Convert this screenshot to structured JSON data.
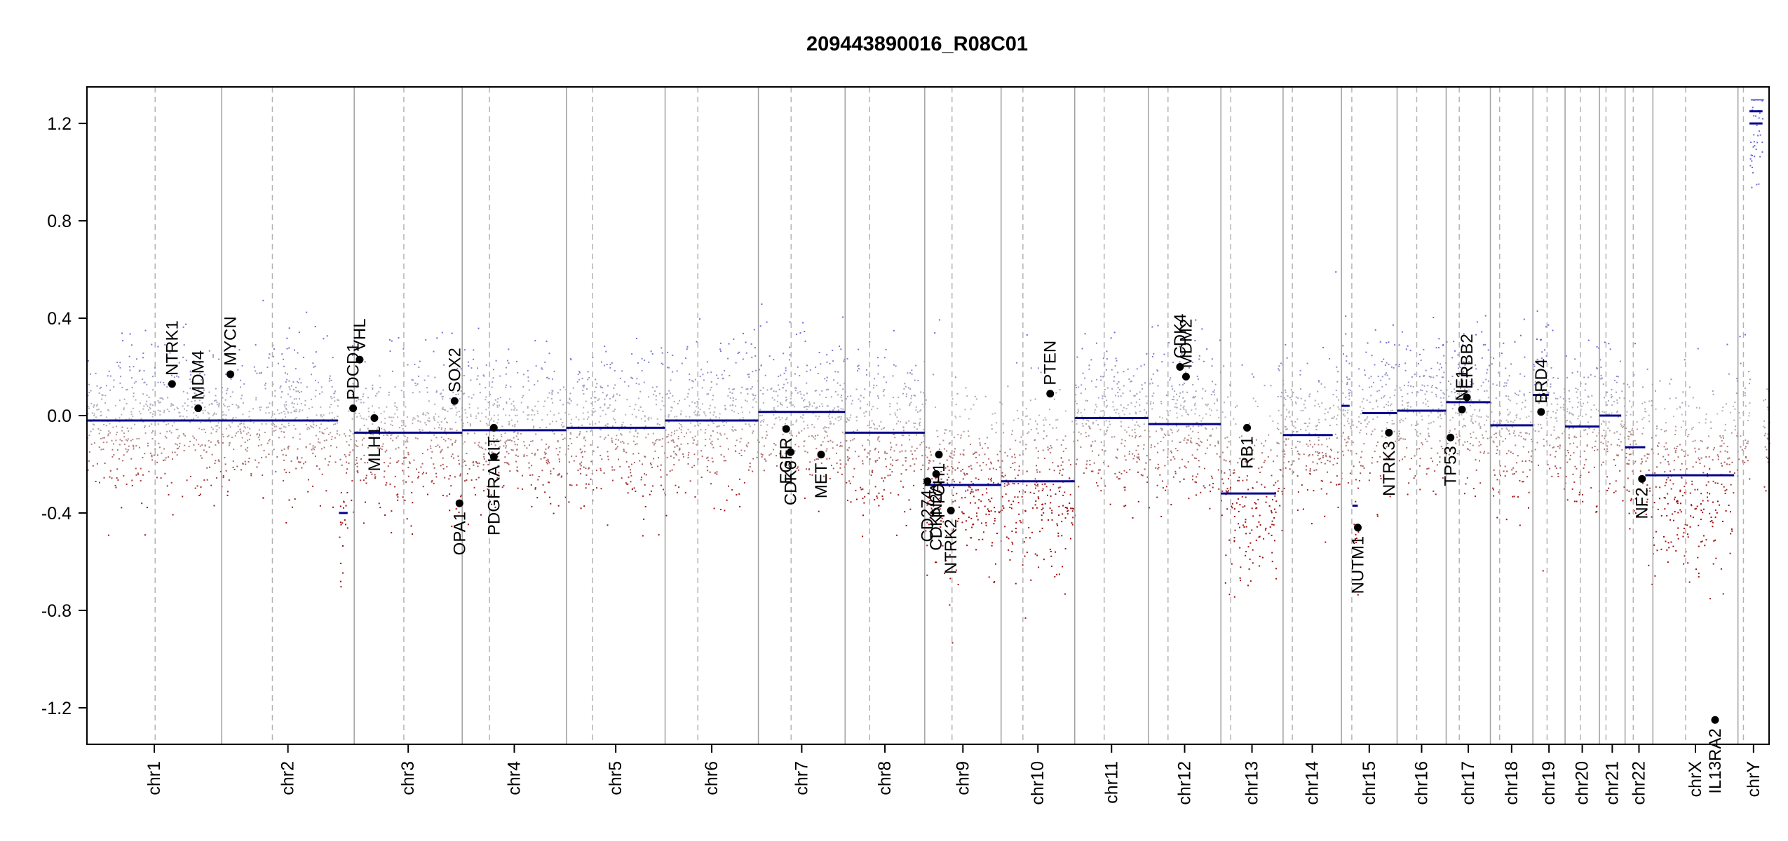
{
  "chart_data": {
    "type": "scatter",
    "title": "209443890016_R08C01",
    "xlabel": "",
    "ylabel": "",
    "ylim": [
      -1.35,
      1.35
    ],
    "yticks": [
      -1.2,
      -0.8,
      -0.4,
      0.0,
      0.4,
      0.8,
      1.2
    ],
    "ytick_labels": [
      "-1.2",
      "-0.8",
      "-0.4",
      "0.0",
      "0.4",
      "0.8",
      "1.2"
    ],
    "chromosomes": [
      {
        "name": "chr1",
        "start": 0,
        "end": 247,
        "centromere": 125
      },
      {
        "name": "chr2",
        "start": 247,
        "end": 490,
        "centromere": 93
      },
      {
        "name": "chr3",
        "start": 490,
        "end": 688,
        "centromere": 91
      },
      {
        "name": "chr4",
        "start": 688,
        "end": 879,
        "centromere": 50
      },
      {
        "name": "chr5",
        "start": 879,
        "end": 1060,
        "centromere": 48
      },
      {
        "name": "chr6",
        "start": 1060,
        "end": 1231,
        "centromere": 60
      },
      {
        "name": "chr7",
        "start": 1231,
        "end": 1390,
        "centromere": 60
      },
      {
        "name": "chr8",
        "start": 1390,
        "end": 1536,
        "centromere": 45
      },
      {
        "name": "chr9",
        "start": 1536,
        "end": 1676,
        "centromere": 50
      },
      {
        "name": "chr10",
        "start": 1676,
        "end": 1811,
        "centromere": 40
      },
      {
        "name": "chr11",
        "start": 1811,
        "end": 1946,
        "centromere": 54
      },
      {
        "name": "chr12",
        "start": 1946,
        "end": 2079,
        "centromere": 36
      },
      {
        "name": "chr13",
        "start": 2079,
        "end": 2193,
        "centromere": 18
      },
      {
        "name": "chr14",
        "start": 2193,
        "end": 2300,
        "centromere": 17
      },
      {
        "name": "chr15",
        "start": 2300,
        "end": 2402,
        "centromere": 19
      },
      {
        "name": "chr16",
        "start": 2402,
        "end": 2492,
        "centromere": 36
      },
      {
        "name": "chr17",
        "start": 2492,
        "end": 2573,
        "centromere": 24
      },
      {
        "name": "chr18",
        "start": 2573,
        "end": 2651,
        "centromere": 17
      },
      {
        "name": "chr19",
        "start": 2651,
        "end": 2710,
        "centromere": 26
      },
      {
        "name": "chr20",
        "start": 2710,
        "end": 2773,
        "centromere": 28
      },
      {
        "name": "chr21",
        "start": 2773,
        "end": 2820,
        "centromere": 12
      },
      {
        "name": "chr22",
        "start": 2820,
        "end": 2871,
        "centromere": 15
      },
      {
        "name": "chrX",
        "start": 2871,
        "end": 3027,
        "centromere": 60
      },
      {
        "name": "chrY",
        "start": 3027,
        "end": 3084,
        "centromere": 10
      }
    ],
    "segments": [
      {
        "x": [
          0,
          247
        ],
        "y": -0.02
      },
      {
        "x": [
          247,
          460
        ],
        "y": -0.02
      },
      {
        "x": [
          462,
          478
        ],
        "y": -0.4
      },
      {
        "x": [
          490,
          688
        ],
        "y": -0.07
      },
      {
        "x": [
          688,
          879
        ],
        "y": -0.06
      },
      {
        "x": [
          879,
          1060
        ],
        "y": -0.05
      },
      {
        "x": [
          1060,
          1231
        ],
        "y": -0.02
      },
      {
        "x": [
          1231,
          1390
        ],
        "y": 0.015
      },
      {
        "x": [
          1390,
          1536
        ],
        "y": -0.07
      },
      {
        "x": [
          1536,
          1676
        ],
        "y": -0.285
      },
      {
        "x": [
          1676,
          1811
        ],
        "y": -0.27
      },
      {
        "x": [
          1811,
          1946
        ],
        "y": -0.01
      },
      {
        "x": [
          1946,
          2079
        ],
        "y": -0.035
      },
      {
        "x": [
          2079,
          2180
        ],
        "y": -0.32
      },
      {
        "x": [
          2193,
          2284
        ],
        "y": -0.08
      },
      {
        "x": [
          2300,
          2315
        ],
        "y": 0.04
      },
      {
        "x": [
          2320,
          2330
        ],
        "y": -0.37
      },
      {
        "x": [
          2338,
          2402
        ],
        "y": 0.01
      },
      {
        "x": [
          2402,
          2492
        ],
        "y": 0.02
      },
      {
        "x": [
          2492,
          2573
        ],
        "y": 0.055
      },
      {
        "x": [
          2573,
          2651
        ],
        "y": -0.04
      },
      {
        "x": [
          2651,
          2680
        ],
        "y": 0.085
      },
      {
        "x": [
          2710,
          2773
        ],
        "y": -0.045
      },
      {
        "x": [
          2773,
          2813
        ],
        "y": 0.0
      },
      {
        "x": [
          2820,
          2857
        ],
        "y": -0.13
      },
      {
        "x": [
          2857,
          3020
        ],
        "y": -0.245
      },
      {
        "x": [
          3048,
          3072
        ],
        "y": 1.2
      },
      {
        "x": [
          3048,
          3072
        ],
        "y": 1.25
      }
    ],
    "genes": [
      {
        "name": "NTRK1",
        "x": 156,
        "y": 0.13
      },
      {
        "name": "MDM4",
        "x": 204,
        "y": 0.03
      },
      {
        "name": "MYCN",
        "x": 263,
        "y": 0.17
      },
      {
        "name": "PDCD1",
        "x": 488,
        "y": 0.03
      },
      {
        "name": "VHL",
        "x": 500,
        "y": 0.23
      },
      {
        "name": "MLH1",
        "x": 527,
        "y": -0.01
      },
      {
        "name": "SOX2",
        "x": 674,
        "y": 0.06
      },
      {
        "name": "OPA1",
        "x": 683,
        "y": -0.36
      },
      {
        "name": "PDGFRA",
        "x": 746,
        "y": -0.17
      },
      {
        "name": "KIT",
        "x": 746,
        "y": -0.05
      },
      {
        "name": "EGFR",
        "x": 1282,
        "y": -0.055
      },
      {
        "name": "CDK6",
        "x": 1290,
        "y": -0.15
      },
      {
        "name": "MET",
        "x": 1346,
        "y": -0.16
      },
      {
        "name": "CD274",
        "x": 1541,
        "y": -0.27
      },
      {
        "name": "CDKN2A",
        "x": 1557,
        "y": -0.24
      },
      {
        "name": "PTCH1",
        "x": 1562,
        "y": -0.16
      },
      {
        "name": "NTRK2",
        "x": 1584,
        "y": -0.39
      },
      {
        "name": "PTEN",
        "x": 1766,
        "y": 0.09
      },
      {
        "name": "CDK4",
        "x": 2004,
        "y": 0.2
      },
      {
        "name": "MDM2",
        "x": 2015,
        "y": 0.16
      },
      {
        "name": "RB1",
        "x": 2127,
        "y": -0.05
      },
      {
        "name": "NUTM1",
        "x": 2330,
        "y": -0.46
      },
      {
        "name": "NTRK3",
        "x": 2387,
        "y": -0.07
      },
      {
        "name": "TP53",
        "x": 2500,
        "y": -0.09
      },
      {
        "name": "NF1",
        "x": 2521,
        "y": 0.025
      },
      {
        "name": "ERBB2",
        "x": 2530,
        "y": 0.075
      },
      {
        "name": "BRD4",
        "x": 2666,
        "y": 0.015
      },
      {
        "name": "NF2",
        "x": 2851,
        "y": -0.26
      },
      {
        "name": "IL13RA2",
        "x": 2985,
        "y": -1.25
      }
    ],
    "colors": {
      "segment": "#00008B",
      "gain": "#6A6AD8",
      "loss": "#A01010",
      "neutral": "#B8B8B8",
      "chrom_boundary": "#A0A0A0",
      "centromere": "#B4B4B4",
      "gene_point": "#000000"
    },
    "grid": false,
    "legend": "none"
  }
}
